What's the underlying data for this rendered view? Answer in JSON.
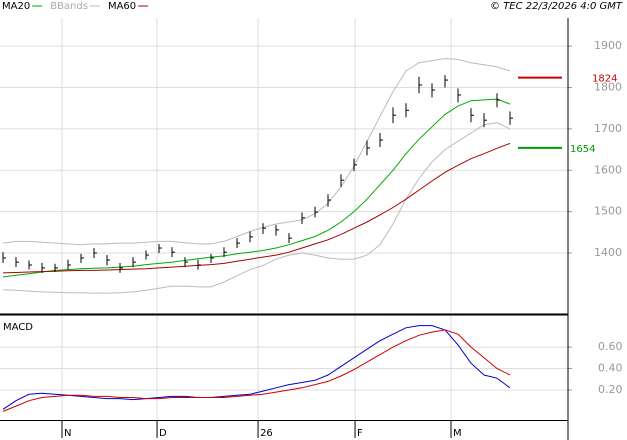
{
  "header": "© TEC 22/3/2026 4:0 GMT",
  "chart_data": [
    {
      "type": "ohlc",
      "legend": [
        {
          "name": "MA20",
          "color": "#00aa00"
        },
        {
          "name": "BBands",
          "color": "#bbbbbb"
        },
        {
          "name": "MA60",
          "color": "#aa0000"
        }
      ],
      "high": [
        1402,
        1390,
        1382,
        1376,
        1374,
        1384,
        1398,
        1412,
        1395,
        1376,
        1390,
        1406,
        1422,
        1414,
        1390,
        1384,
        1398,
        1414,
        1436,
        1452,
        1472,
        1468,
        1448,
        1498,
        1512,
        1542,
        1590,
        1628,
        1672,
        1690,
        1752,
        1762,
        1826,
        1810,
        1830,
        1798,
        1750,
        1738,
        1786,
        1742
      ],
      "low": [
        1376,
        1366,
        1360,
        1352,
        1354,
        1360,
        1376,
        1388,
        1370,
        1352,
        1366,
        1384,
        1400,
        1390,
        1366,
        1360,
        1376,
        1390,
        1412,
        1426,
        1446,
        1442,
        1424,
        1470,
        1486,
        1512,
        1560,
        1598,
        1636,
        1656,
        1714,
        1728,
        1786,
        1776,
        1800,
        1764,
        1716,
        1704,
        1752,
        1710
      ],
      "close": [
        1388,
        1378,
        1371,
        1364,
        1364,
        1371,
        1388,
        1400,
        1383,
        1364,
        1378,
        1395,
        1412,
        1402,
        1378,
        1371,
        1388,
        1402,
        1424,
        1439,
        1460,
        1456,
        1436,
        1485,
        1499,
        1528,
        1576,
        1613,
        1654,
        1673,
        1733,
        1745,
        1806,
        1794,
        1818,
        1782,
        1733,
        1721,
        1770,
        1726
      ],
      "bar_color": "#000000",
      "series": [
        {
          "name": "MA20",
          "color": "#00aa00",
          "values": [
            1342,
            1346,
            1350,
            1354,
            1358,
            1360,
            1362,
            1363,
            1364,
            1366,
            1368,
            1372,
            1375,
            1378,
            1382,
            1386,
            1390,
            1393,
            1398,
            1402,
            1406,
            1412,
            1420,
            1430,
            1440,
            1455,
            1475,
            1500,
            1530,
            1565,
            1600,
            1640,
            1675,
            1705,
            1735,
            1755,
            1768,
            1770,
            1772,
            1760
          ]
        },
        {
          "name": "MA60",
          "color": "#aa0000",
          "values": [
            1352,
            1353,
            1354,
            1355,
            1356,
            1357,
            1358,
            1358,
            1359,
            1360,
            1361,
            1362,
            1364,
            1366,
            1368,
            1370,
            1372,
            1375,
            1380,
            1385,
            1390,
            1395,
            1402,
            1412,
            1422,
            1432,
            1445,
            1460,
            1475,
            1492,
            1510,
            1530,
            1552,
            1574,
            1595,
            1612,
            1628,
            1640,
            1653,
            1665
          ]
        }
      ],
      "bbands": {
        "color": "#bbbbbb",
        "upper": [
          1424,
          1428,
          1428,
          1426,
          1424,
          1422,
          1420,
          1422,
          1422,
          1424,
          1424,
          1426,
          1428,
          1428,
          1425,
          1422,
          1422,
          1428,
          1440,
          1452,
          1462,
          1470,
          1475,
          1480,
          1495,
          1520,
          1560,
          1610,
          1670,
          1730,
          1790,
          1840,
          1860,
          1865,
          1870,
          1868,
          1860,
          1855,
          1850,
          1840
        ],
        "lower": [
          1311,
          1310,
          1308,
          1306,
          1305,
          1304,
          1304,
          1303,
          1303,
          1304,
          1306,
          1310,
          1315,
          1320,
          1320,
          1318,
          1318,
          1330,
          1345,
          1360,
          1370,
          1385,
          1395,
          1400,
          1395,
          1388,
          1385,
          1385,
          1395,
          1420,
          1470,
          1530,
          1580,
          1620,
          1650,
          1670,
          1690,
          1710,
          1715,
          1700
        ]
      },
      "markers": [
        {
          "value": 1824,
          "color": "#cc0000"
        },
        {
          "value": 1654,
          "color": "#009900"
        }
      ],
      "ylim": [
        1255,
        1968
      ],
      "yticks": [
        1400,
        1500,
        1600,
        1700,
        1800,
        1900
      ],
      "xlim": [
        -0.23,
        43.46
      ],
      "xticks": [
        {
          "value": 4.54,
          "label": "N"
        },
        {
          "value": 11.85,
          "label": "D"
        },
        {
          "value": 19.62,
          "label": "26"
        },
        {
          "value": 27.08,
          "label": "F"
        },
        {
          "value": 34.46,
          "label": "M"
        }
      ],
      "grid": true
    },
    {
      "type": "line",
      "title": "MACD",
      "series": [
        {
          "color": "#0000cc",
          "values": [
            0.02,
            0.1,
            0.16,
            0.17,
            0.16,
            0.15,
            0.14,
            0.13,
            0.12,
            0.12,
            0.11,
            0.12,
            0.13,
            0.14,
            0.14,
            0.13,
            0.13,
            0.14,
            0.15,
            0.16,
            0.19,
            0.22,
            0.25,
            0.27,
            0.29,
            0.34,
            0.42,
            0.5,
            0.58,
            0.66,
            0.72,
            0.78,
            0.8,
            0.8,
            0.76,
            0.62,
            0.45,
            0.34,
            0.31,
            0.22
          ]
        },
        {
          "color": "#cc0000",
          "values": [
            0,
            0.05,
            0.1,
            0.13,
            0.14,
            0.15,
            0.15,
            0.14,
            0.14,
            0.13,
            0.13,
            0.12,
            0.12,
            0.13,
            0.13,
            0.13,
            0.13,
            0.13,
            0.14,
            0.15,
            0.16,
            0.18,
            0.2,
            0.22,
            0.25,
            0.28,
            0.33,
            0.39,
            0.46,
            0.53,
            0.6,
            0.66,
            0.71,
            0.74,
            0.76,
            0.72,
            0.6,
            0.5,
            0.4,
            0.34
          ]
        }
      ],
      "ylim": [
        -0.08,
        0.89
      ],
      "yticks": [
        {
          "value": 0.2,
          "label": "0.20"
        },
        {
          "value": 0.4,
          "label": "0.40"
        },
        {
          "value": 0.6,
          "label": "0.60"
        }
      ],
      "grid": true
    }
  ]
}
